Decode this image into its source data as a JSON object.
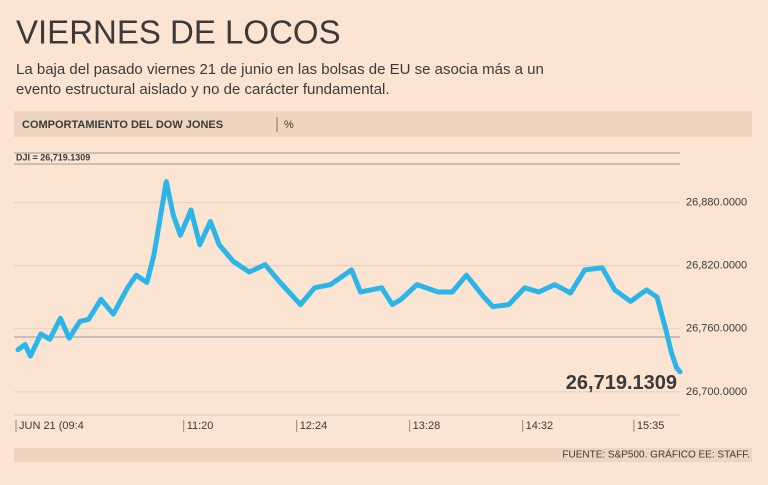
{
  "chart_data": {
    "type": "line",
    "title": "VIERNES DE LOCOS",
    "subtitle": "La baja del pasado viernes 21 de junio en las bolsas de EU se asocia más a un evento estructural aislado y no de carácter fundamental.",
    "section_title": "COMPORTAMIENTO DEL DOW JONES",
    "unit": "%",
    "indicator": "DJI = 26,719.1309",
    "annotation": "26,719.1309",
    "source": "FUENTE: S&P500. GRÁFICO EE: STAFF.",
    "color": "#2bb5e8",
    "x": [
      "09:45",
      "09:49",
      "09:52",
      "09:58",
      "10:03",
      "10:09",
      "10:14",
      "10:20",
      "10:25",
      "10:32",
      "10:39",
      "10:47",
      "10:52",
      "10:58",
      "11:02",
      "11:09",
      "11:13",
      "11:17",
      "11:23",
      "11:28",
      "11:34",
      "11:39",
      "11:47",
      "11:56",
      "12:05",
      "12:13",
      "12:25",
      "12:33",
      "12:42",
      "12:54",
      "12:59",
      "13:11",
      "13:17",
      "13:22",
      "13:31",
      "13:43",
      "13:51",
      "13:59",
      "14:09",
      "14:14",
      "14:23",
      "14:32",
      "14:40",
      "14:49",
      "14:58",
      "15:06",
      "15:16",
      "15:23",
      "15:32",
      "15:41",
      "15:47",
      "15:52",
      "15:55",
      "15:58",
      "16:00"
    ],
    "values": [
      26740,
      26745,
      26734,
      26755,
      26750,
      26770,
      26751,
      26767,
      26769,
      26788,
      26774,
      26799,
      26811,
      26804,
      26830,
      26900,
      26868,
      26849,
      26873,
      26840,
      26862,
      26840,
      26824,
      26814,
      26821,
      26805,
      26783,
      26799,
      26802,
      26816,
      26795,
      26799,
      26783,
      26788,
      26802,
      26795,
      26795,
      26811,
      26790,
      26781,
      26783,
      26799,
      26795,
      26802,
      26794,
      26816,
      26818,
      26797,
      26786,
      26797,
      26790,
      26759,
      26738,
      26723,
      26719.1309
    ],
    "xlim": [
      "09:45",
      "16:00"
    ],
    "xticks": [
      {
        "value": "09:45",
        "label": "JUN 21 (09:4"
      },
      "11:20",
      "12:24",
      "13:28",
      "14:32",
      "15:35"
    ],
    "ylim": [
      26678,
      26911
    ],
    "yticks": [
      {
        "value": 26700,
        "label": "26,700.0000"
      },
      {
        "value": 26760,
        "label": "26,760.0000"
      },
      {
        "value": 26820,
        "label": "26,820.0000"
      },
      {
        "value": 26880,
        "label": "26,880.0000"
      }
    ],
    "grid": true
  }
}
